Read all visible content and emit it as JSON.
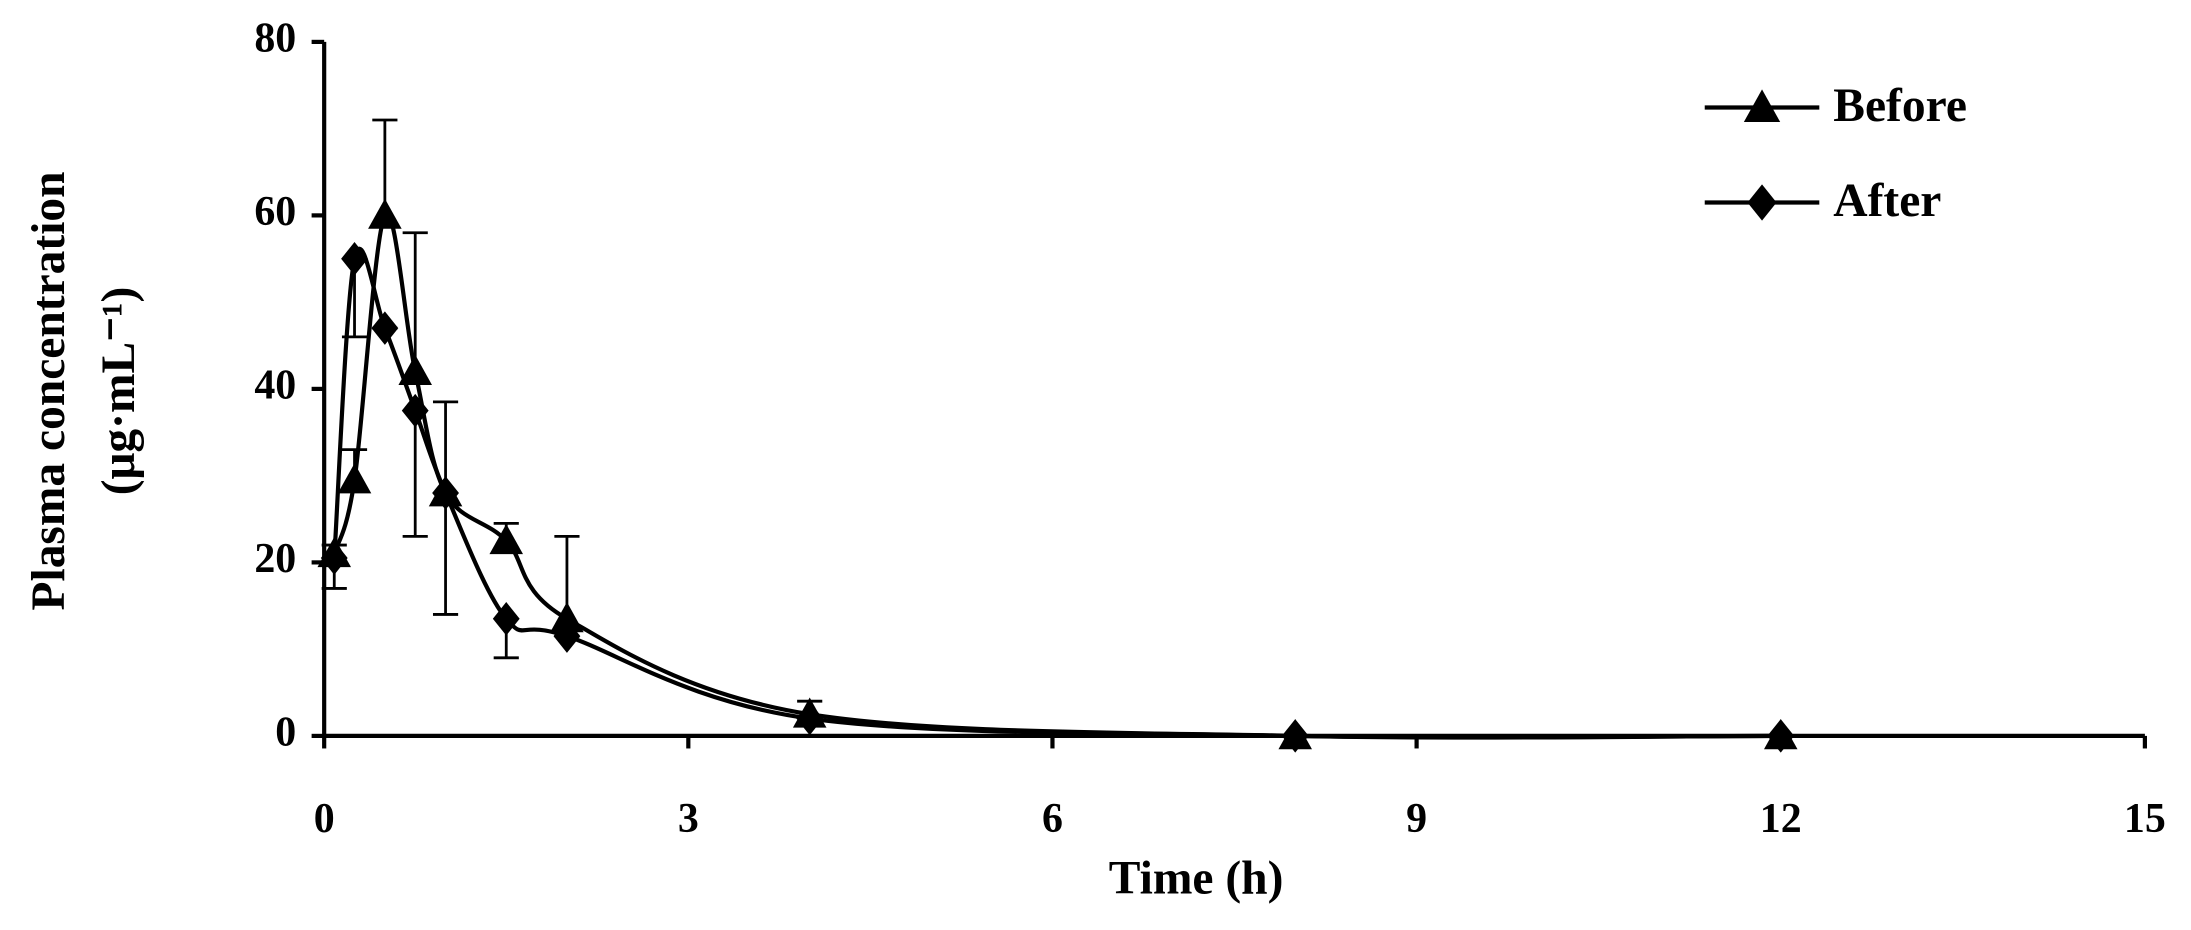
{
  "chart_data": {
    "type": "line",
    "xlabel": "Time (h)",
    "ylabel": [
      "Plasma  concentration",
      "(μg·mL⁻¹)"
    ],
    "xlim": [
      0,
      15
    ],
    "xticks": [
      0,
      3,
      6,
      9,
      12,
      15
    ],
    "ylim": [
      0,
      80
    ],
    "yticks": [
      0,
      20,
      40,
      60,
      80
    ],
    "legend": "upper right",
    "x": [
      0.083,
      0.25,
      0.5,
      0.75,
      1,
      1.5,
      2,
      4,
      8,
      12
    ],
    "series": [
      {
        "name": "Before",
        "color": "#000000",
        "marker": "triangle",
        "error_direction": "up",
        "values": [
          21,
          29.5,
          60,
          42,
          28,
          22.5,
          13.5,
          2.5,
          0,
          0
        ],
        "errors": [
          1,
          3.5,
          11,
          16,
          10.5,
          2,
          9.5,
          1.5,
          0,
          0
        ]
      },
      {
        "name": "After",
        "color": "#000000",
        "marker": "diamond",
        "error_direction": "down",
        "values": [
          20.5,
          55,
          47,
          37.5,
          28,
          13.5,
          11.5,
          2,
          0,
          0
        ],
        "errors": [
          3.5,
          9,
          0,
          14.5,
          14,
          4.5,
          0,
          0.5,
          0,
          0
        ]
      }
    ]
  }
}
